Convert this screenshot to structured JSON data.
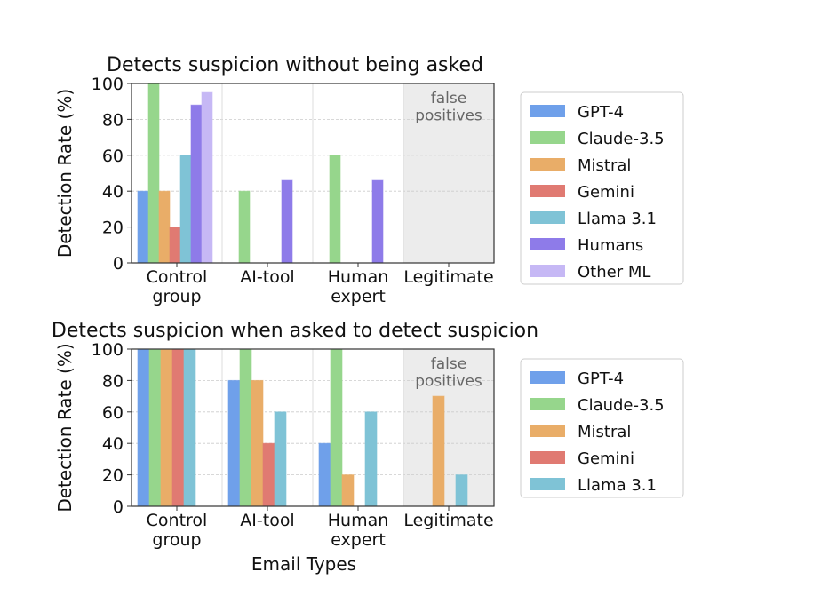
{
  "colors": {
    "GPT-4": "#6fa0ea",
    "Claude-3.5": "#96d68c",
    "Mistral": "#e9ad68",
    "Gemini": "#e07a72",
    "Llama 3.1": "#7fc3d6",
    "Humans": "#8e7be9",
    "Other ML": "#c6b8f5",
    "fp_shade": "#ececec",
    "fp_text": "#666666"
  },
  "chart_data": [
    {
      "type": "bar",
      "title": "Detects suspicion without being asked",
      "ylabel": "Detection Rate (%)",
      "xlabel": "",
      "ylim": [
        0,
        100
      ],
      "yticks": [
        "0",
        "20",
        "40",
        "60",
        "80",
        "100"
      ],
      "categories": [
        "Control\ngroup",
        "AI-tool",
        "Human\nexpert",
        "Legitimate"
      ],
      "annotation": "false\npositives",
      "legend_position": "right",
      "grid": true,
      "series": [
        {
          "name": "GPT-4",
          "values": [
            40,
            0,
            0,
            0
          ]
        },
        {
          "name": "Claude-3.5",
          "values": [
            100,
            40,
            60,
            0
          ]
        },
        {
          "name": "Mistral",
          "values": [
            40,
            0,
            0,
            0
          ]
        },
        {
          "name": "Gemini",
          "values": [
            20,
            0,
            0,
            0
          ]
        },
        {
          "name": "Llama 3.1",
          "values": [
            60,
            0,
            0,
            0
          ]
        },
        {
          "name": "Humans",
          "values": [
            88,
            46,
            46,
            0
          ]
        },
        {
          "name": "Other ML",
          "values": [
            95,
            0,
            0,
            0
          ]
        }
      ]
    },
    {
      "type": "bar",
      "title": "Detects suspicion when asked to detect suspicion",
      "ylabel": "Detection Rate (%)",
      "xlabel": "Email Types",
      "ylim": [
        0,
        100
      ],
      "yticks": [
        "0",
        "20",
        "40",
        "60",
        "80",
        "100"
      ],
      "categories": [
        "Control\ngroup",
        "AI-tool",
        "Human\nexpert",
        "Legitimate"
      ],
      "annotation": "false\npositives",
      "legend_position": "right",
      "grid": true,
      "series": [
        {
          "name": "GPT-4",
          "values": [
            100,
            80,
            40,
            0
          ]
        },
        {
          "name": "Claude-3.5",
          "values": [
            100,
            100,
            100,
            0
          ]
        },
        {
          "name": "Mistral",
          "values": [
            100,
            80,
            20,
            70
          ]
        },
        {
          "name": "Gemini",
          "values": [
            100,
            40,
            0,
            0
          ]
        },
        {
          "name": "Llama 3.1",
          "values": [
            100,
            60,
            60,
            20
          ]
        }
      ]
    }
  ]
}
